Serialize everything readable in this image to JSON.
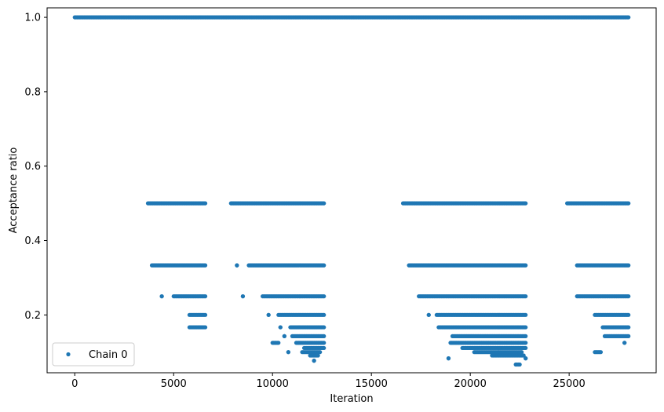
{
  "chart_data": {
    "type": "scatter",
    "title": "",
    "xlabel": "Iteration",
    "ylabel": "Acceptance ratio",
    "xlim": [
      -1400,
      29400
    ],
    "ylim": [
      0.0445,
      1.0255
    ],
    "xticks": [
      0,
      5000,
      10000,
      15000,
      20000,
      25000
    ],
    "xtick_labels": [
      "0",
      "5000",
      "10000",
      "15000",
      "20000",
      "25000"
    ],
    "yticks": [
      0.2,
      0.4,
      0.6,
      0.8,
      1.0
    ],
    "ytick_labels": [
      "0.2",
      "0.4",
      "0.6",
      "0.8",
      "1.0"
    ],
    "grid": false,
    "legend_position": "lower-left",
    "series": [
      {
        "name": "Chain 0",
        "color": "#1f77b4",
        "marker": "circle",
        "bands": [
          {
            "y": 1.0,
            "x_ranges": [
              [
                0,
                28000
              ]
            ]
          },
          {
            "y": 0.5,
            "x_ranges": [
              [
                3700,
                6600
              ],
              [
                7900,
                12600
              ],
              [
                16600,
                22800
              ],
              [
                24900,
                28000
              ]
            ]
          },
          {
            "y": 0.3333,
            "x_ranges": [
              [
                3900,
                6600
              ],
              [
                8200,
                8200
              ],
              [
                8800,
                12600
              ],
              [
                16900,
                22800
              ],
              [
                25400,
                28000
              ]
            ]
          },
          {
            "y": 0.25,
            "x_ranges": [
              [
                4400,
                4400
              ],
              [
                5000,
                6600
              ],
              [
                8500,
                8500
              ],
              [
                9500,
                12600
              ],
              [
                17400,
                22800
              ],
              [
                25400,
                28000
              ]
            ]
          },
          {
            "y": 0.2,
            "x_ranges": [
              [
                5800,
                6600
              ],
              [
                9800,
                9800
              ],
              [
                10300,
                12600
              ],
              [
                17900,
                17900
              ],
              [
                18300,
                22800
              ],
              [
                26300,
                28000
              ]
            ]
          },
          {
            "y": 0.1667,
            "x_ranges": [
              [
                5800,
                6600
              ],
              [
                10400,
                10400
              ],
              [
                10900,
                12600
              ],
              [
                18400,
                22800
              ],
              [
                26700,
                28000
              ]
            ]
          },
          {
            "y": 0.1429,
            "x_ranges": [
              [
                10600,
                10600
              ],
              [
                11000,
                12600
              ],
              [
                19100,
                22800
              ],
              [
                26800,
                28000
              ]
            ]
          },
          {
            "y": 0.125,
            "x_ranges": [
              [
                10000,
                10300
              ],
              [
                11200,
                12600
              ],
              [
                19000,
                22800
              ],
              [
                27800,
                27800
              ]
            ]
          },
          {
            "y": 0.1111,
            "x_ranges": [
              [
                11600,
                12600
              ],
              [
                19600,
                22800
              ]
            ]
          },
          {
            "y": 0.1,
            "x_ranges": [
              [
                10800,
                10800
              ],
              [
                11500,
                12400
              ],
              [
                20200,
                22600
              ],
              [
                26300,
                26600
              ]
            ]
          },
          {
            "y": 0.0909,
            "x_ranges": [
              [
                11900,
                12300
              ],
              [
                21100,
                22700
              ]
            ]
          },
          {
            "y": 0.0833,
            "x_ranges": [
              [
                18900,
                18900
              ],
              [
                22800,
                22800
              ]
            ]
          },
          {
            "y": 0.0769,
            "x_ranges": [
              [
                12100,
                12100
              ]
            ]
          },
          {
            "y": 0.0667,
            "x_ranges": [
              [
                22300,
                22500
              ]
            ]
          }
        ]
      }
    ]
  }
}
